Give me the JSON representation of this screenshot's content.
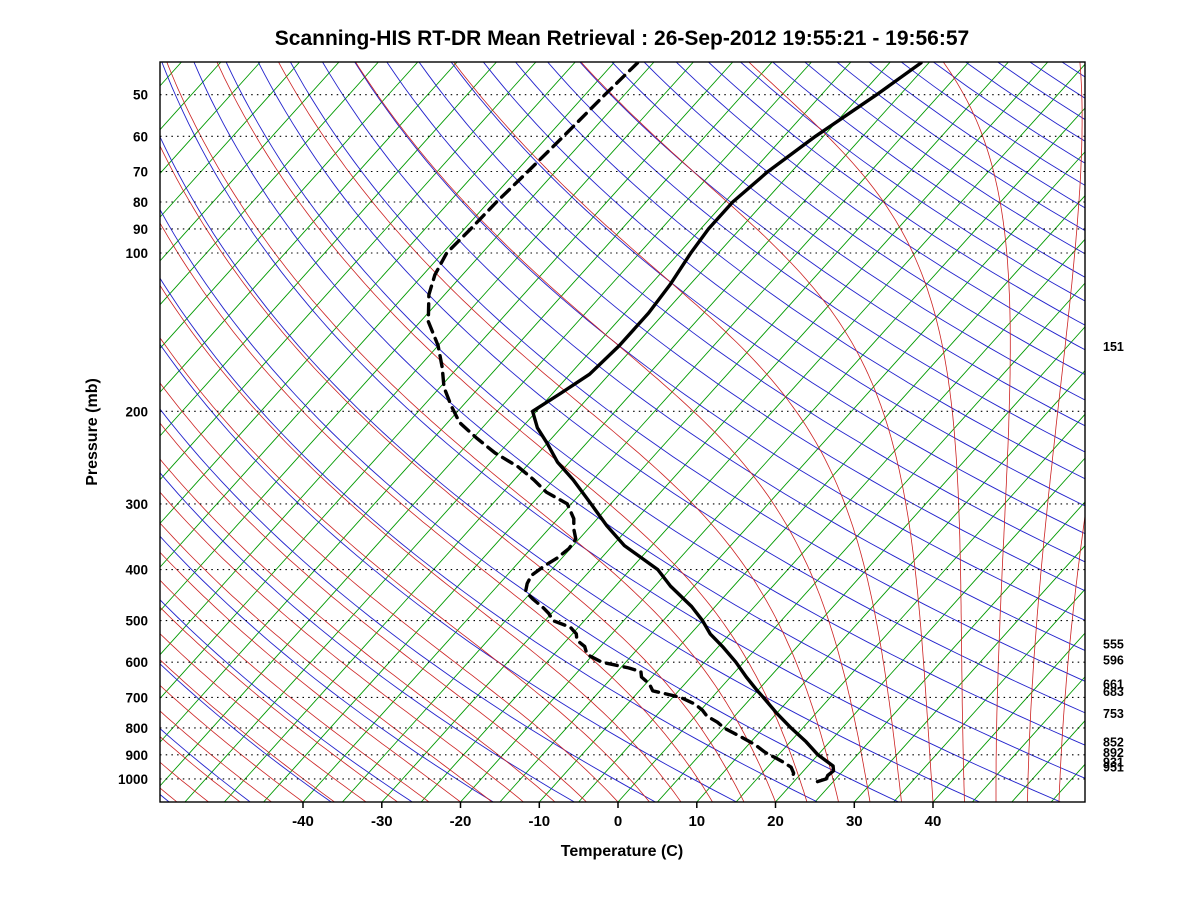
{
  "title": "Scanning-HIS RT-DR Mean Retrieval : 26-Sep-2012 19:55:21 - 19:56:57",
  "chart_data": {
    "type": "line",
    "subtype": "skew-t-log-p-sounding",
    "title": "Scanning-HIS RT-DR Mean Retrieval : 26-Sep-2012 19:55:21 - 19:56:57",
    "xlabel": "Temperature (C)",
    "ylabel": "Pressure (mb)",
    "x_ticks_c": [
      -40,
      -30,
      -20,
      -10,
      0,
      10,
      20,
      30,
      40
    ],
    "pressure_ticks_mb": [
      50,
      60,
      70,
      80,
      90,
      100,
      200,
      300,
      400,
      500,
      600,
      700,
      800,
      900,
      1000
    ],
    "pressure_range_mb": [
      43,
      1106
    ],
    "surface_temp_axis_range_c": [
      -58,
      59
    ],
    "grid": "dotted-horizontal-isobars",
    "legend": "none",
    "right_edge_pressure_labels": [
      151,
      555,
      596,
      661,
      683,
      753,
      852,
      892,
      931,
      951
    ],
    "background_lines": {
      "isotherms_c": {
        "min": -140,
        "max": 55,
        "step": 5,
        "color": "#009900"
      },
      "dry_adiabats_theta_k": {
        "min": 210,
        "max": 610,
        "step": 10,
        "color": "#2222cc"
      },
      "moist_adiabats_surface_c": {
        "min": -60,
        "max": 56,
        "step": 4,
        "color": "#cc2222"
      },
      "isobar_color": "#000000"
    },
    "series": [
      {
        "name": "Temperature",
        "style": "solid",
        "color": "#000000",
        "points_p_t": [
          [
            43.5,
            -46
          ],
          [
            50,
            -48
          ],
          [
            60,
            -51
          ],
          [
            70,
            -53
          ],
          [
            80,
            -54
          ],
          [
            90,
            -54
          ],
          [
            100,
            -53.5
          ],
          [
            115,
            -52.5
          ],
          [
            130,
            -52
          ],
          [
            150,
            -52
          ],
          [
            170,
            -52.5
          ],
          [
            185,
            -54
          ],
          [
            200,
            -55.5
          ],
          [
            215,
            -53
          ],
          [
            230,
            -50
          ],
          [
            250,
            -46.5
          ],
          [
            270,
            -42.5
          ],
          [
            300,
            -37.5
          ],
          [
            330,
            -33
          ],
          [
            360,
            -28.5
          ],
          [
            400,
            -21.5
          ],
          [
            430,
            -18
          ],
          [
            470,
            -13
          ],
          [
            500,
            -10
          ],
          [
            530,
            -7.5
          ],
          [
            560,
            -4.5
          ],
          [
            600,
            -1
          ],
          [
            640,
            2
          ],
          [
            680,
            5
          ],
          [
            700,
            6.5
          ],
          [
            750,
            10
          ],
          [
            800,
            13.5
          ],
          [
            850,
            17
          ],
          [
            900,
            20
          ],
          [
            925,
            21.8
          ],
          [
            945,
            23.2
          ],
          [
            965,
            23.8
          ],
          [
            985,
            23.6
          ],
          [
            1000,
            23.8
          ],
          [
            1012,
            23.0
          ]
        ]
      },
      {
        "name": "Dew Point",
        "style": "dashed",
        "color": "#000000",
        "points_p_t": [
          [
            43.5,
            -82
          ],
          [
            50,
            -82.5
          ],
          [
            60,
            -83
          ],
          [
            70,
            -83.5
          ],
          [
            80,
            -84
          ],
          [
            90,
            -84.2
          ],
          [
            100,
            -84.5
          ],
          [
            110,
            -83.5
          ],
          [
            120,
            -82
          ],
          [
            135,
            -79
          ],
          [
            150,
            -75
          ],
          [
            165,
            -72
          ],
          [
            180,
            -69.5
          ],
          [
            195,
            -66.5
          ],
          [
            210,
            -63.5
          ],
          [
            225,
            -59.5
          ],
          [
            240,
            -55.5
          ],
          [
            255,
            -51
          ],
          [
            270,
            -47.5
          ],
          [
            285,
            -44.5
          ],
          [
            300,
            -40.5
          ],
          [
            320,
            -38
          ],
          [
            335,
            -36.8
          ],
          [
            350,
            -35.4
          ],
          [
            365,
            -35.2
          ],
          [
            380,
            -35.6
          ],
          [
            395,
            -36.4
          ],
          [
            410,
            -36.9
          ],
          [
            425,
            -36.5
          ],
          [
            440,
            -35.8
          ],
          [
            455,
            -34
          ],
          [
            470,
            -32
          ],
          [
            485,
            -30.3
          ],
          [
            500,
            -29
          ],
          [
            515,
            -26
          ],
          [
            530,
            -24.5
          ],
          [
            545,
            -23.7
          ],
          [
            560,
            -22
          ],
          [
            580,
            -20.8
          ],
          [
            600,
            -18
          ],
          [
            615,
            -14
          ],
          [
            625,
            -12
          ],
          [
            640,
            -11.3
          ],
          [
            660,
            -9.5
          ],
          [
            680,
            -8.3
          ],
          [
            700,
            -4
          ],
          [
            720,
            -1.5
          ],
          [
            740,
            0.2
          ],
          [
            760,
            1.5
          ],
          [
            780,
            3.5
          ],
          [
            800,
            5
          ],
          [
            830,
            8
          ],
          [
            860,
            10.8
          ],
          [
            890,
            13
          ],
          [
            910,
            14.8
          ],
          [
            930,
            16.5
          ],
          [
            950,
            18
          ],
          [
            975,
            19
          ],
          [
            1000,
            19.5
          ]
        ]
      }
    ]
  }
}
